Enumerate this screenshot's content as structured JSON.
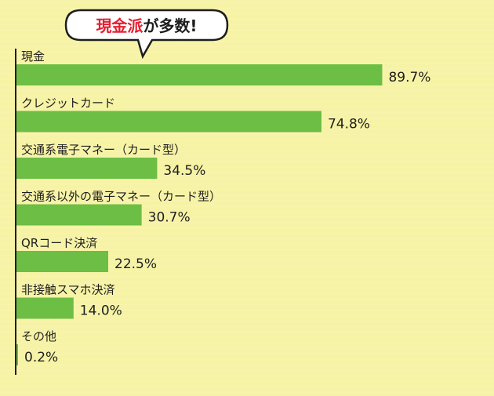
{
  "callout": {
    "highlight": "現金派",
    "rest": "が多数!"
  },
  "colors": {
    "background": "#f7f3a6",
    "bar": "#6cbe45",
    "highlight": "#e51f2f",
    "text": "#1e1e1e",
    "callout_border": "#1e1e1e",
    "callout_fill": "#ffffff"
  },
  "chart_data": {
    "type": "bar",
    "orientation": "horizontal",
    "title": "",
    "xlabel": "",
    "ylabel": "",
    "unit": "%",
    "xlim": [
      0,
      100
    ],
    "grid": false,
    "categories": [
      "現金",
      "クレジットカード",
      "交通系電子マネー（カード型）",
      "交通系以外の電子マネー（カード型）",
      "QRコード決済",
      "非接触スマホ決済",
      "その他"
    ],
    "values": [
      89.7,
      74.8,
      34.5,
      30.7,
      22.5,
      14.0,
      0.2
    ],
    "value_labels": [
      "89.7%",
      "74.8%",
      "34.5%",
      "30.7%",
      "22.5%",
      "14.0%",
      "0.2%"
    ]
  }
}
